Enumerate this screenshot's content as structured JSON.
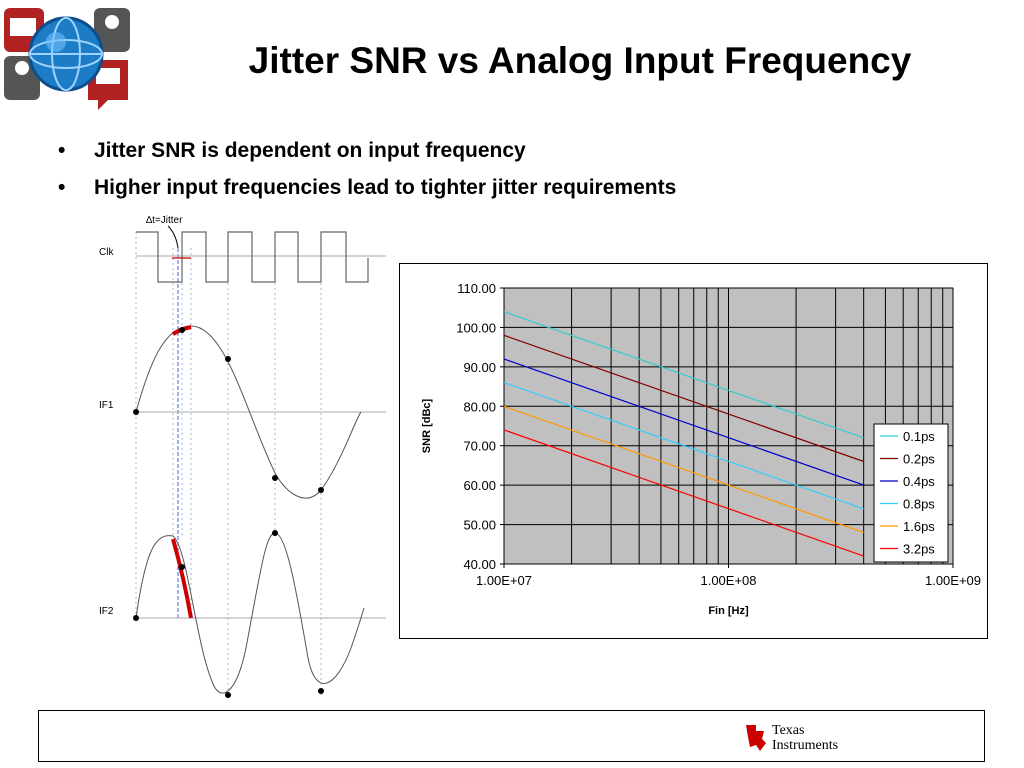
{
  "slide": {
    "title": "Jitter SNR vs Analog Input Frequency",
    "bullets": [
      "Jitter SNR is dependent on input frequency",
      "Higher input frequencies lead to tighter jitter requirements"
    ],
    "bullet_glyph": "•"
  },
  "diagram": {
    "jitter_label": "∆t=Jitter",
    "clk_label": "Clk",
    "if1_label": "IF1",
    "if2_label": "IF2",
    "highlight_color": "#cc0000"
  },
  "footer": {
    "brand_line1": "Texas",
    "brand_line2": "Instruments",
    "brand_color": "#cc0000"
  },
  "chart_data": {
    "type": "line",
    "title": "",
    "xlabel": "Fin [Hz]",
    "ylabel": "SNR [dBc]",
    "x_scale": "log",
    "xlim": [
      10000000,
      1000000000
    ],
    "ylim": [
      40,
      110
    ],
    "x_ticks": [
      "1.00E+07",
      "1.00E+08",
      "1.00E+09"
    ],
    "y_ticks": [
      "110.00",
      "100.00",
      "90.00",
      "80.00",
      "70.00",
      "60.00",
      "50.00",
      "40.00"
    ],
    "grid": true,
    "plot_background": "#c0c0c0",
    "legend_position": "right",
    "series": [
      {
        "name": "0.1ps",
        "color": "#33cccc",
        "x": [
          10000000,
          400000000
        ],
        "y": [
          104.0,
          72.0
        ]
      },
      {
        "name": "0.2ps",
        "color": "#800000",
        "x": [
          10000000,
          400000000
        ],
        "y": [
          98.0,
          66.0
        ]
      },
      {
        "name": "0.4ps",
        "color": "#0000cc",
        "x": [
          10000000,
          400000000
        ],
        "y": [
          92.0,
          60.0
        ]
      },
      {
        "name": "0.8ps",
        "color": "#33ccff",
        "x": [
          10000000,
          400000000
        ],
        "y": [
          86.0,
          54.0
        ]
      },
      {
        "name": "1.6ps",
        "color": "#ff9900",
        "x": [
          10000000,
          400000000
        ],
        "y": [
          80.0,
          48.0
        ]
      },
      {
        "name": "3.2ps",
        "color": "#ff0000",
        "x": [
          10000000,
          400000000
        ],
        "y": [
          74.0,
          42.0
        ]
      }
    ]
  }
}
